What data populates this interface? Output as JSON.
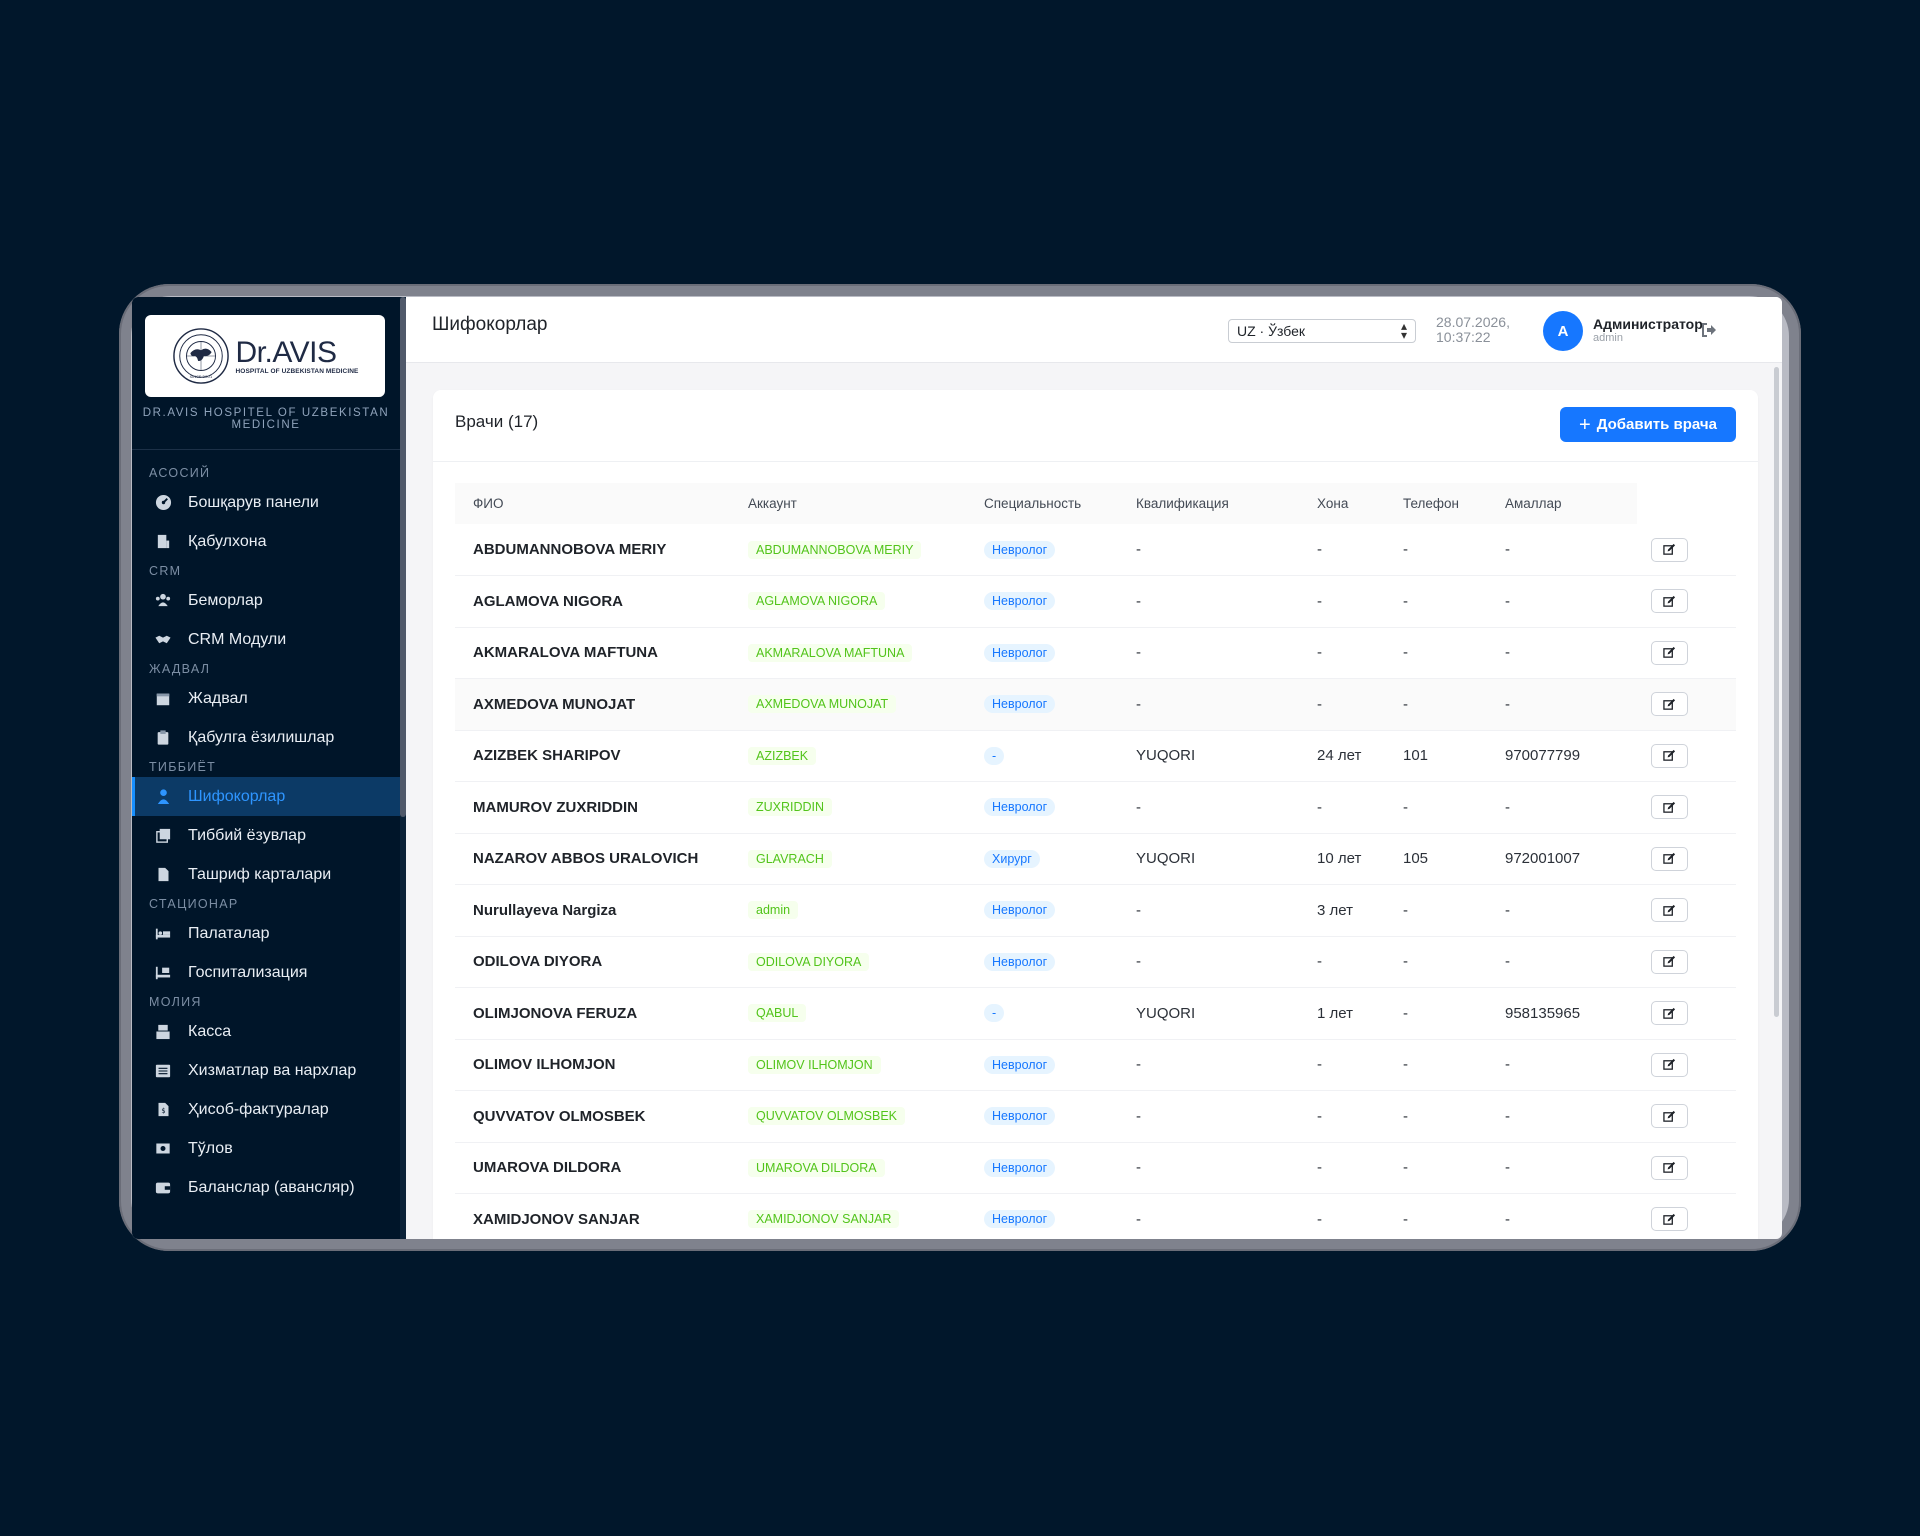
{
  "app": {
    "hospital_name": "DR.AVIS HOSPITEL OF UZBEKISTAN MEDICINE",
    "logo_brand_dr": "Dr.",
    "logo_brand_avis": "AVIS",
    "logo_sub": "HOSPITAL OF UZBEKISTAN MEDICINE"
  },
  "sidebar": {
    "sections": [
      {
        "title": "АСОСИЙ",
        "items": [
          {
            "label": "Бошқарув панели",
            "icon": "dashboard-icon"
          },
          {
            "label": "Қабулхона",
            "icon": "reception-icon"
          }
        ]
      },
      {
        "title": "CRM",
        "items": [
          {
            "label": "Беморлар",
            "icon": "users-icon"
          },
          {
            "label": "CRM Модули",
            "icon": "handshake-icon"
          }
        ]
      },
      {
        "title": "ЖАДВАЛ",
        "items": [
          {
            "label": "Жадвал",
            "icon": "calendar-icon"
          },
          {
            "label": "Қабулга ёзилишлар",
            "icon": "clipboard-icon"
          }
        ]
      },
      {
        "title": "ТИББИЁТ",
        "items": [
          {
            "label": "Шифокорлар",
            "icon": "doctor-icon",
            "active": true
          },
          {
            "label": "Тиббий ёзувлар",
            "icon": "records-icon"
          },
          {
            "label": "Ташриф карталари",
            "icon": "card-file-icon"
          }
        ]
      },
      {
        "title": "СТАЦИОНАР",
        "items": [
          {
            "label": "Палаталар",
            "icon": "bed-icon"
          },
          {
            "label": "Госпитализация",
            "icon": "hospital-bed-icon"
          }
        ]
      },
      {
        "title": "МОЛИЯ",
        "items": [
          {
            "label": "Касса",
            "icon": "cash-register-icon"
          },
          {
            "label": "Хизматлар ва нархлар",
            "icon": "list-icon"
          },
          {
            "label": "Ҳисоб-фактуралар",
            "icon": "invoice-icon"
          },
          {
            "label": "Тўлов",
            "icon": "money-icon"
          },
          {
            "label": "Баланслар (авансляр)",
            "icon": "wallet-icon"
          }
        ]
      }
    ]
  },
  "header": {
    "title": "Шифокорлар",
    "language": "UZ · Ўзбек",
    "date": "28.07.2026,",
    "time": "10:37:22",
    "avatar_letter": "A",
    "user_name": "Администратор",
    "user_role": "admin"
  },
  "card": {
    "title": "Врачи (17)",
    "add_button": "Добавить врача",
    "columns": [
      "ФИО",
      "Аккаунт",
      "Специальность",
      "Квалификация",
      "Хона",
      "Телефон",
      "Амаллар"
    ],
    "rows": [
      {
        "fio": "ABDUMANNOBOVA MERIY",
        "account": "ABDUMANNOBOVA MERIY",
        "spec": "Невролог",
        "qual": "-",
        "exp": "-",
        "room": "-",
        "phone": "-"
      },
      {
        "fio": "AGLAMOVA NIGORA",
        "account": "AGLAMOVA NIGORA",
        "spec": "Невролог",
        "qual": "-",
        "exp": "-",
        "room": "-",
        "phone": "-"
      },
      {
        "fio": "AKMARALOVA MAFTUNA",
        "account": "AKMARALOVA MAFTUNA",
        "spec": "Невролог",
        "qual": "-",
        "exp": "-",
        "room": "-",
        "phone": "-"
      },
      {
        "fio": "AXMEDOVA MUNOJAT",
        "account": "AXMEDOVA MUNOJAT",
        "spec": "Невролог",
        "qual": "-",
        "exp": "-",
        "room": "-",
        "phone": "-"
      },
      {
        "fio": "AZIZBEK SHARIPOV",
        "account": "AZIZBEK",
        "spec": "-",
        "qual": "YUQORI",
        "exp": "24 лет",
        "room": "101",
        "phone": "970077799"
      },
      {
        "fio": "MAMUROV ZUXRIDDIN",
        "account": "ZUXRIDDIN",
        "spec": "Невролог",
        "qual": "-",
        "exp": "-",
        "room": "-",
        "phone": "-"
      },
      {
        "fio": "NAZAROV ABBOS URALOVICH",
        "account": "GLAVRACH",
        "spec": "Хирург",
        "qual": "YUQORI",
        "exp": "10 лет",
        "room": "105",
        "phone": "972001007"
      },
      {
        "fio": "Nurullayeva Nargiza",
        "account": "admin",
        "spec": "Невролог",
        "qual": "-",
        "exp": "3 лет",
        "room": "-",
        "phone": "-"
      },
      {
        "fio": "ODILOVA DIYORA",
        "account": "ODILOVA DIYORA",
        "spec": "Невролог",
        "qual": "-",
        "exp": "-",
        "room": "-",
        "phone": "-"
      },
      {
        "fio": "OLIMJONOVA FERUZA",
        "account": "QABUL",
        "spec": "-",
        "qual": "YUQORI",
        "exp": "1 лет",
        "room": "-",
        "phone": "958135965"
      },
      {
        "fio": "OLIMOV ILHOMJON",
        "account": "OLIMOV ILHOMJON",
        "spec": "Невролог",
        "qual": "-",
        "exp": "-",
        "room": "-",
        "phone": "-"
      },
      {
        "fio": "QUVVATOV OLMOSBEK",
        "account": "QUVVATOV OLMOSBEK",
        "spec": "Невролог",
        "qual": "-",
        "exp": "-",
        "room": "-",
        "phone": "-"
      },
      {
        "fio": "UMAROVA DILDORA",
        "account": "UMAROVA DILDORA",
        "spec": "Невролог",
        "qual": "-",
        "exp": "-",
        "room": "-",
        "phone": "-"
      },
      {
        "fio": "XAMIDJONOV SANJAR",
        "account": "XAMIDJONOV SANJAR",
        "spec": "Невролог",
        "qual": "-",
        "exp": "-",
        "room": "-",
        "phone": "-"
      }
    ]
  },
  "colors": {
    "sidebar_bg": "#001529",
    "accent": "#1677ff",
    "account_tag": "#52c41a",
    "page_bg": "#01172b"
  }
}
